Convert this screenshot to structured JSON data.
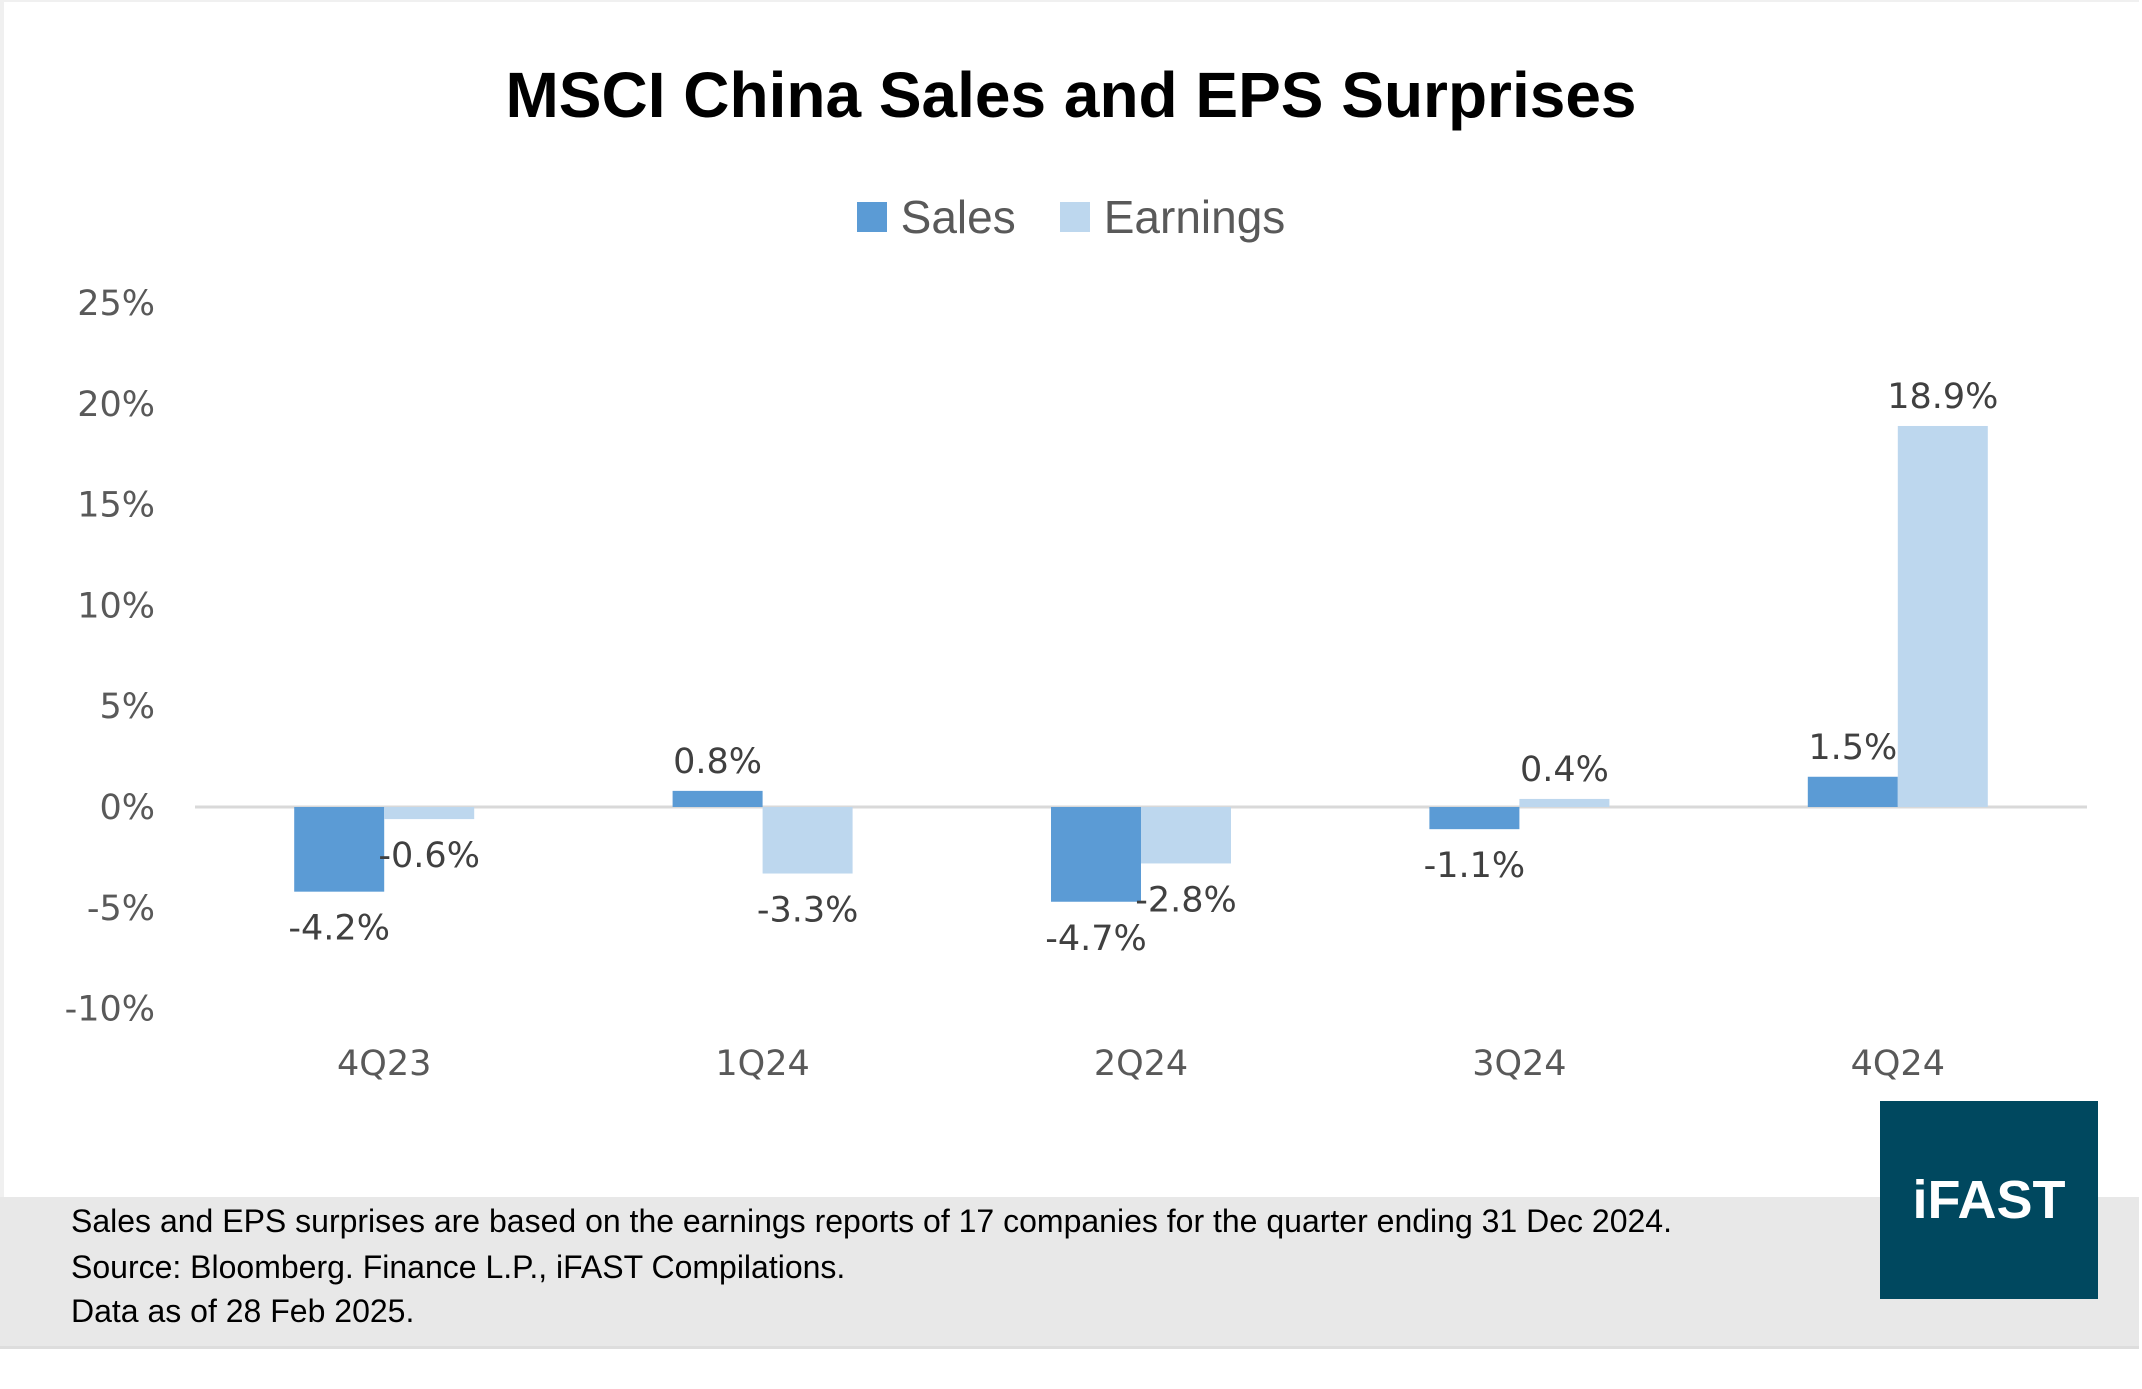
{
  "chart_data": {
    "type": "bar",
    "title": "MSCI China Sales and EPS Surprises",
    "categories": [
      "4Q23",
      "1Q24",
      "2Q24",
      "3Q24",
      "4Q24"
    ],
    "series": [
      {
        "name": "Sales",
        "values": [
          -4.2,
          0.8,
          -4.7,
          -1.1,
          1.5
        ],
        "labels": [
          "-4.2%",
          "0.8%",
          "-4.7%",
          "-1.1%",
          "1.5%"
        ],
        "color": "#5b9bd5"
      },
      {
        "name": "Earnings",
        "values": [
          -0.6,
          -3.3,
          -2.8,
          0.4,
          18.9
        ],
        "labels": [
          "-0.6%",
          "-3.3%",
          "-2.8%",
          "0.4%",
          "18.9%"
        ],
        "color": "#bdd7ee"
      }
    ],
    "yticks": [
      "25%",
      "20%",
      "15%",
      "10%",
      "5%",
      "0%",
      "-5%",
      "-10%"
    ],
    "ylim": [
      -10,
      25
    ],
    "xlabel": "",
    "ylabel": "",
    "grid": false,
    "legend": "top"
  },
  "footer": {
    "line1": "Sales and EPS surprises are based on the earnings reports of 17 companies for the quarter ending 31 Dec 2024.",
    "line2": "Source: Bloomberg. Finance L.P., iFAST Compilations.",
    "line3": "Data as of 28 Feb 2025."
  },
  "logo": {
    "text": "iFAST",
    "color": "#00485f"
  }
}
